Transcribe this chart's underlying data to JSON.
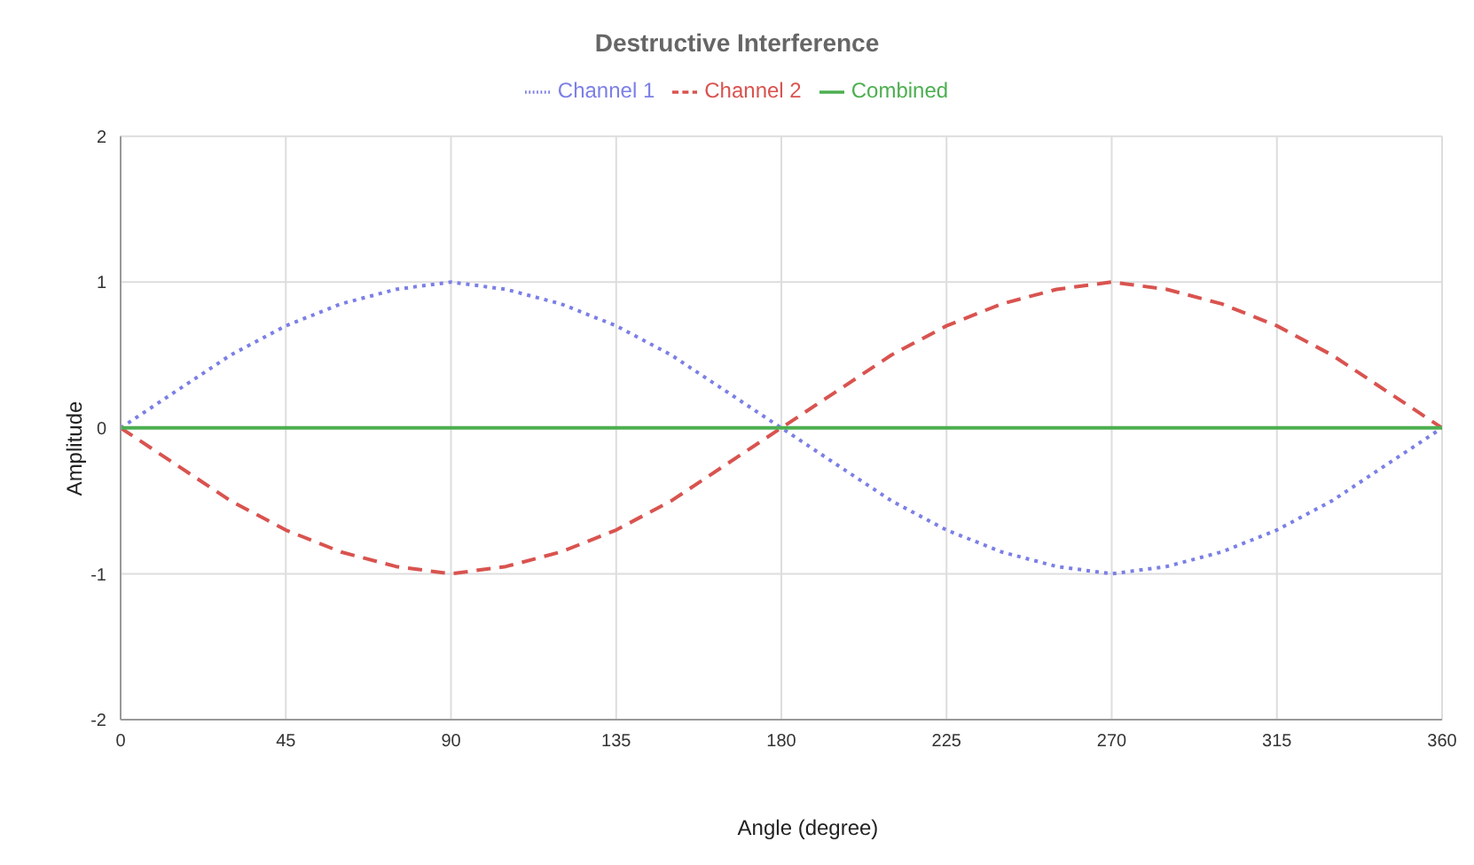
{
  "chart_data": {
    "type": "line",
    "title": "Destructive Interference",
    "xlabel": "Angle (degree)",
    "ylabel": "Amplitude",
    "x": [
      0,
      15,
      30,
      45,
      60,
      75,
      90,
      105,
      120,
      135,
      150,
      165,
      180,
      195,
      210,
      225,
      240,
      255,
      270,
      285,
      300,
      315,
      330,
      345,
      360
    ],
    "series": [
      {
        "name": "Channel 1",
        "color": "#7b7fe6",
        "line_style": "dotted",
        "values": [
          0,
          0.25,
          0.5,
          0.7,
          0.85,
          0.95,
          1,
          0.95,
          0.85,
          0.7,
          0.5,
          0.25,
          0,
          -0.25,
          -0.5,
          -0.7,
          -0.85,
          -0.95,
          -1,
          -0.95,
          -0.85,
          -0.7,
          -0.5,
          -0.25,
          0
        ]
      },
      {
        "name": "Channel 2",
        "color": "#d9534f",
        "line_style": "dashed",
        "values": [
          0,
          -0.25,
          -0.5,
          -0.7,
          -0.85,
          -0.95,
          -1,
          -0.95,
          -0.85,
          -0.7,
          -0.5,
          -0.25,
          0,
          0.25,
          0.5,
          0.7,
          0.85,
          0.95,
          1,
          0.95,
          0.85,
          0.7,
          0.5,
          0.25,
          0
        ]
      },
      {
        "name": "Combined",
        "color": "#4caf50",
        "line_style": "solid",
        "values": [
          0,
          0,
          0,
          0,
          0,
          0,
          0,
          0,
          0,
          0,
          0,
          0,
          0,
          0,
          0,
          0,
          0,
          0,
          0,
          0,
          0,
          0,
          0,
          0,
          0
        ]
      }
    ],
    "xlim": [
      0,
      360
    ],
    "xticks": [
      0,
      45,
      90,
      135,
      180,
      225,
      270,
      315,
      360
    ],
    "ylim": [
      -2,
      2
    ],
    "yticks": [
      -2,
      -1,
      0,
      1,
      2
    ],
    "grid": true,
    "legend": "top",
    "marker": "none"
  }
}
